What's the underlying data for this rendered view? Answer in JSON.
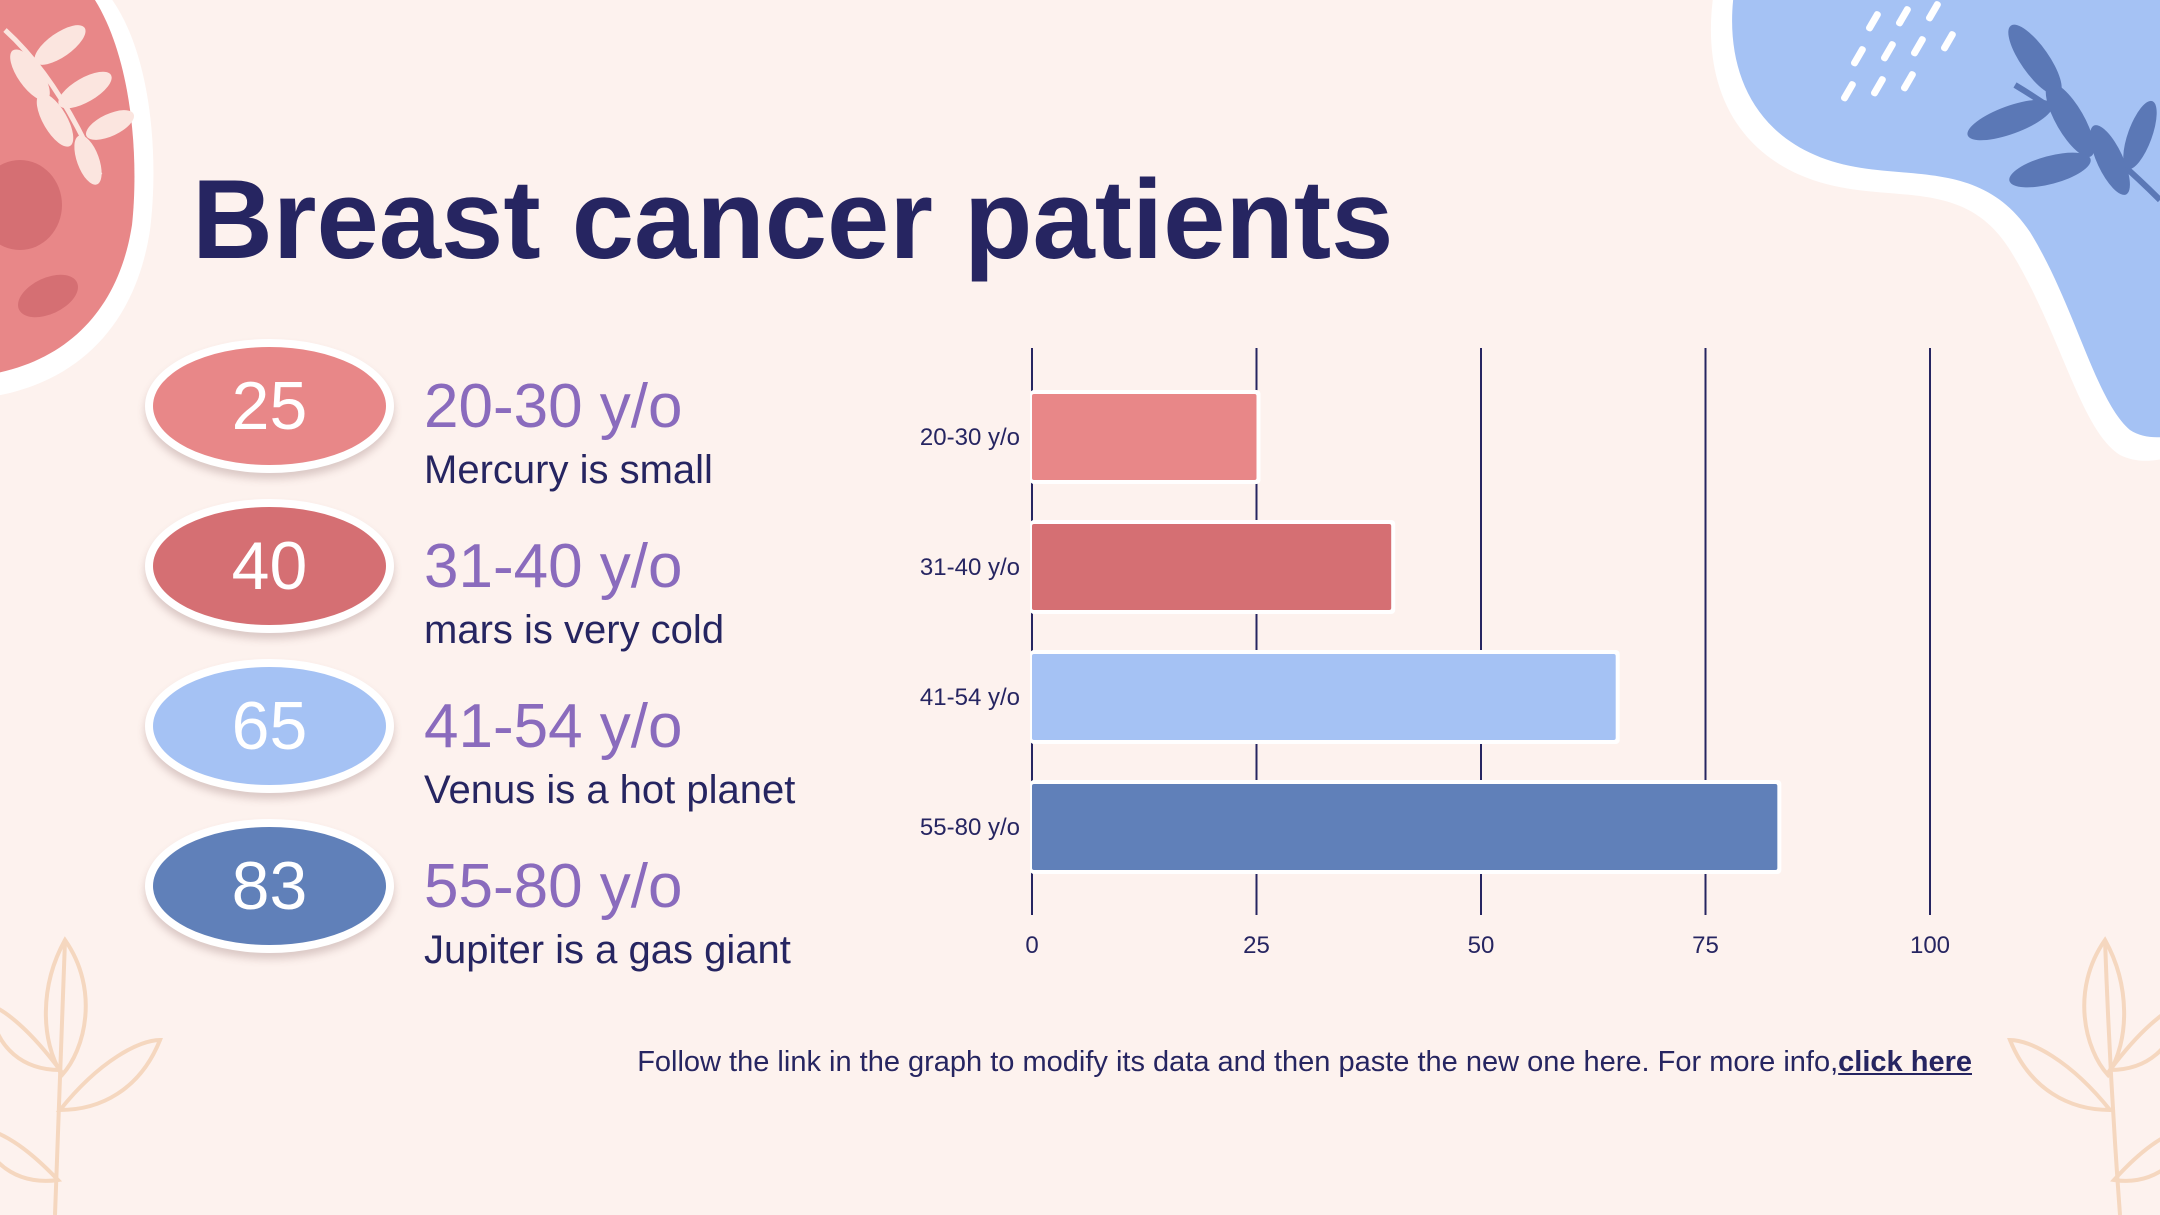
{
  "title": "Breast cancer patients",
  "rows": [
    {
      "value": "25",
      "range": "20-30 y/o",
      "desc": "Mercury is small",
      "color": "#e88788"
    },
    {
      "value": "40",
      "range": "31-40 y/o",
      "desc": "mars is very cold",
      "color": "#d56f73"
    },
    {
      "value": "65",
      "range": "41-54 y/o",
      "desc": "Venus is a hot planet",
      "color": "#a5c2f4"
    },
    {
      "value": "83",
      "range": "55-80 y/o",
      "desc": "Jupiter is a gas giant",
      "color": "#6080b9"
    }
  ],
  "footer": {
    "text": "Follow the link in the graph to modify its data and then paste the new one here. For more info,",
    "link": "click here"
  },
  "colors": {
    "background": "#fdf2ee",
    "title": "#262561",
    "accent_purple": "#8a6bbd",
    "blob_pink": "#e88788",
    "blob_blue": "#a5c2f4",
    "leaf_dark_blue": "#5b78b6",
    "leaf_outline": "#f5d7bf"
  },
  "icons": [
    "leaf-branch-icon",
    "leaf-outline-icon"
  ],
  "chart_data": {
    "type": "bar",
    "orientation": "horizontal",
    "categories": [
      "20-30 y/o",
      "31-40 y/o",
      "41-54 y/o",
      "55-80 y/o"
    ],
    "values": [
      25,
      40,
      65,
      83
    ],
    "colors": [
      "#e88788",
      "#d56f73",
      "#a5c2f4",
      "#6080b9"
    ],
    "xlim": [
      0,
      100
    ],
    "xticks": [
      0,
      25,
      50,
      75,
      100
    ],
    "grid": true,
    "legend": "none",
    "title": "",
    "xlabel": "",
    "ylabel": ""
  }
}
